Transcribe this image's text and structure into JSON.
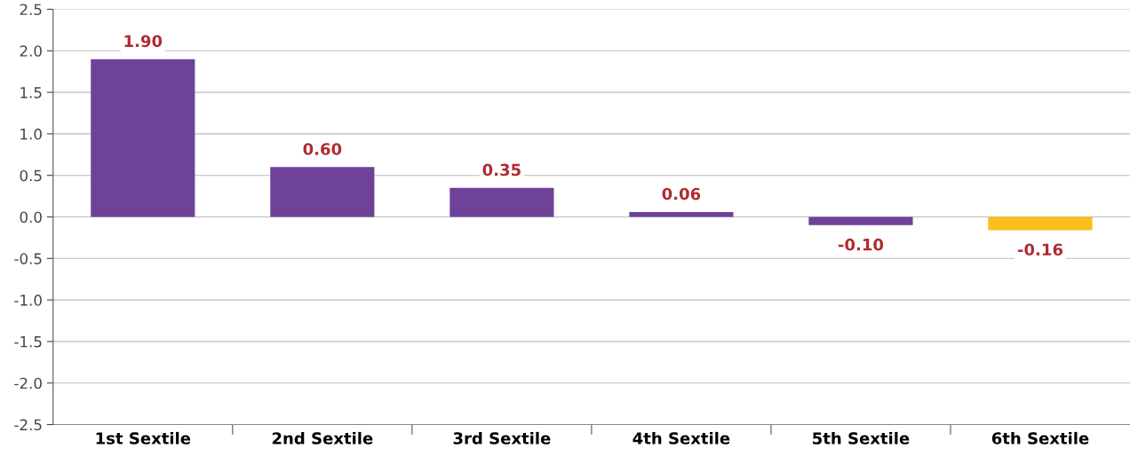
{
  "chart_data": {
    "type": "bar",
    "categories": [
      "1st Sextile",
      "2nd Sextile",
      "3rd Sextile",
      "4th Sextile",
      "5th Sextile",
      "6th Sextile"
    ],
    "values": [
      1.9,
      0.6,
      0.35,
      0.06,
      -0.1,
      -0.16
    ],
    "colors": [
      "#6f4299",
      "#6f4299",
      "#6f4299",
      "#6f4299",
      "#6f4299",
      "#fbbd1a"
    ],
    "value_labels": [
      "1.90",
      "0.60",
      "0.35",
      "0.06",
      "-0.10",
      "-0.16"
    ],
    "ylim": [
      -2.5,
      2.5
    ],
    "yticks": [
      {
        "value": -2.5,
        "label": "-2.5"
      },
      {
        "value": -2,
        "label": "-2.0"
      },
      {
        "value": -1.5,
        "label": "-1.5"
      },
      {
        "value": -1,
        "label": "-1.0"
      },
      {
        "value": -0.5,
        "label": "-0.5"
      },
      {
        "value": 0,
        "label": "0.0"
      },
      {
        "value": 0.5,
        "label": "0.5"
      },
      {
        "value": 1,
        "label": "1.0"
      },
      {
        "value": 1.5,
        "label": "1.5"
      },
      {
        "value": 2,
        "label": "2.0"
      },
      {
        "value": 2.5,
        "label": "2.5"
      }
    ],
    "grid": "y"
  }
}
